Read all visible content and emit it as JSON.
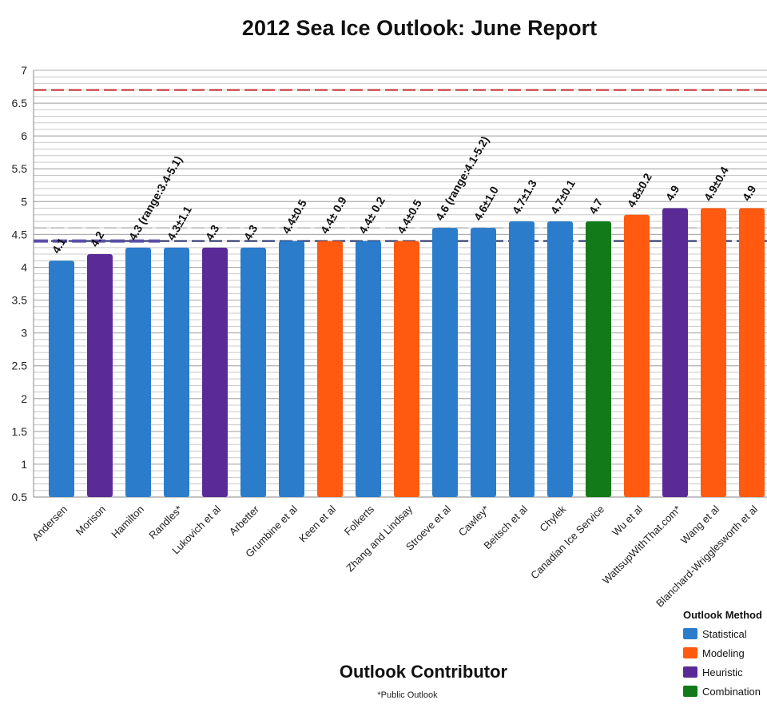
{
  "chart_data": {
    "type": "bar",
    "title": "2012 Sea Ice Outlook: June Report",
    "xlabel": "Outlook Contributor",
    "footnote": "*Public Outlook",
    "ylim": [
      0.5,
      7
    ],
    "yticks": [
      "0.5",
      "1",
      "1.5",
      "2",
      "2.5",
      "3",
      "3.5",
      "4",
      "4.5",
      "5",
      "5.5",
      "6",
      "6.5",
      "7"
    ],
    "categories": [
      "Andersen",
      "Morison",
      "Hamilton",
      "Randles*",
      "Lukovich et al",
      "Arbetter",
      "Grumbine et al",
      "Keen et al",
      "Folkerts",
      "Zhang and Lindsay",
      "Stroeve et al",
      "Cawley*",
      "Beitsch et al",
      "Chylek",
      "Canadian Ice Service",
      "Wu et al",
      "WattsupWithThat.com*",
      "Wang et al",
      "Blanchard-Wrigglesworth et al"
    ],
    "values": [
      4.1,
      4.2,
      4.3,
      4.3,
      4.3,
      4.3,
      4.4,
      4.4,
      4.4,
      4.4,
      4.6,
      4.6,
      4.7,
      4.7,
      4.7,
      4.8,
      4.9,
      4.9,
      4.9
    ],
    "methods": [
      "Statistical",
      "Heuristic",
      "Statistical",
      "Statistical",
      "Heuristic",
      "Statistical",
      "Statistical",
      "Modeling",
      "Statistical",
      "Modeling",
      "Statistical",
      "Statistical",
      "Statistical",
      "Statistical",
      "Combination",
      "Modeling",
      "Heuristic",
      "Modeling",
      "Modeling"
    ],
    "data_labels": [
      "4.1",
      "4.2",
      "4.3 (range:3.4-5.1)",
      "4.3±1.1",
      "4.3",
      "4.3",
      "4.4±0.5",
      "4.4± 0.9",
      "4.4± 0.2",
      "4.4±0.5",
      "4.6 (range:4.1-5.2)",
      "4.6±1.0",
      "4.7±1.3",
      "4.7±0.1",
      "4.7",
      "4.8±0.2",
      "4.9",
      "4.9±0.4",
      "4.9"
    ],
    "reference_lines": [
      {
        "value": 6.7,
        "color": "#c0282d",
        "style": "dashed"
      },
      {
        "value": 4.4,
        "color": "#1f2a66",
        "style": "dashed"
      },
      {
        "value": 4.6,
        "color": "#999999",
        "style": "dashed"
      }
    ],
    "legend": {
      "title": "Outlook Method",
      "placement": "bottom-right",
      "items": [
        {
          "label": "Statistical",
          "color": "#2b7ccb"
        },
        {
          "label": "Modeling",
          "color": "#ff5a0f"
        },
        {
          "label": "Heuristic",
          "color": "#5a2a96"
        },
        {
          "label": "Combination",
          "color": "#127a18"
        }
      ]
    },
    "colors": {
      "Statistical": "#2b7ccb",
      "Modeling": "#ff5a0f",
      "Heuristic": "#5a2a96",
      "Combination": "#127a18"
    },
    "grid": true
  }
}
